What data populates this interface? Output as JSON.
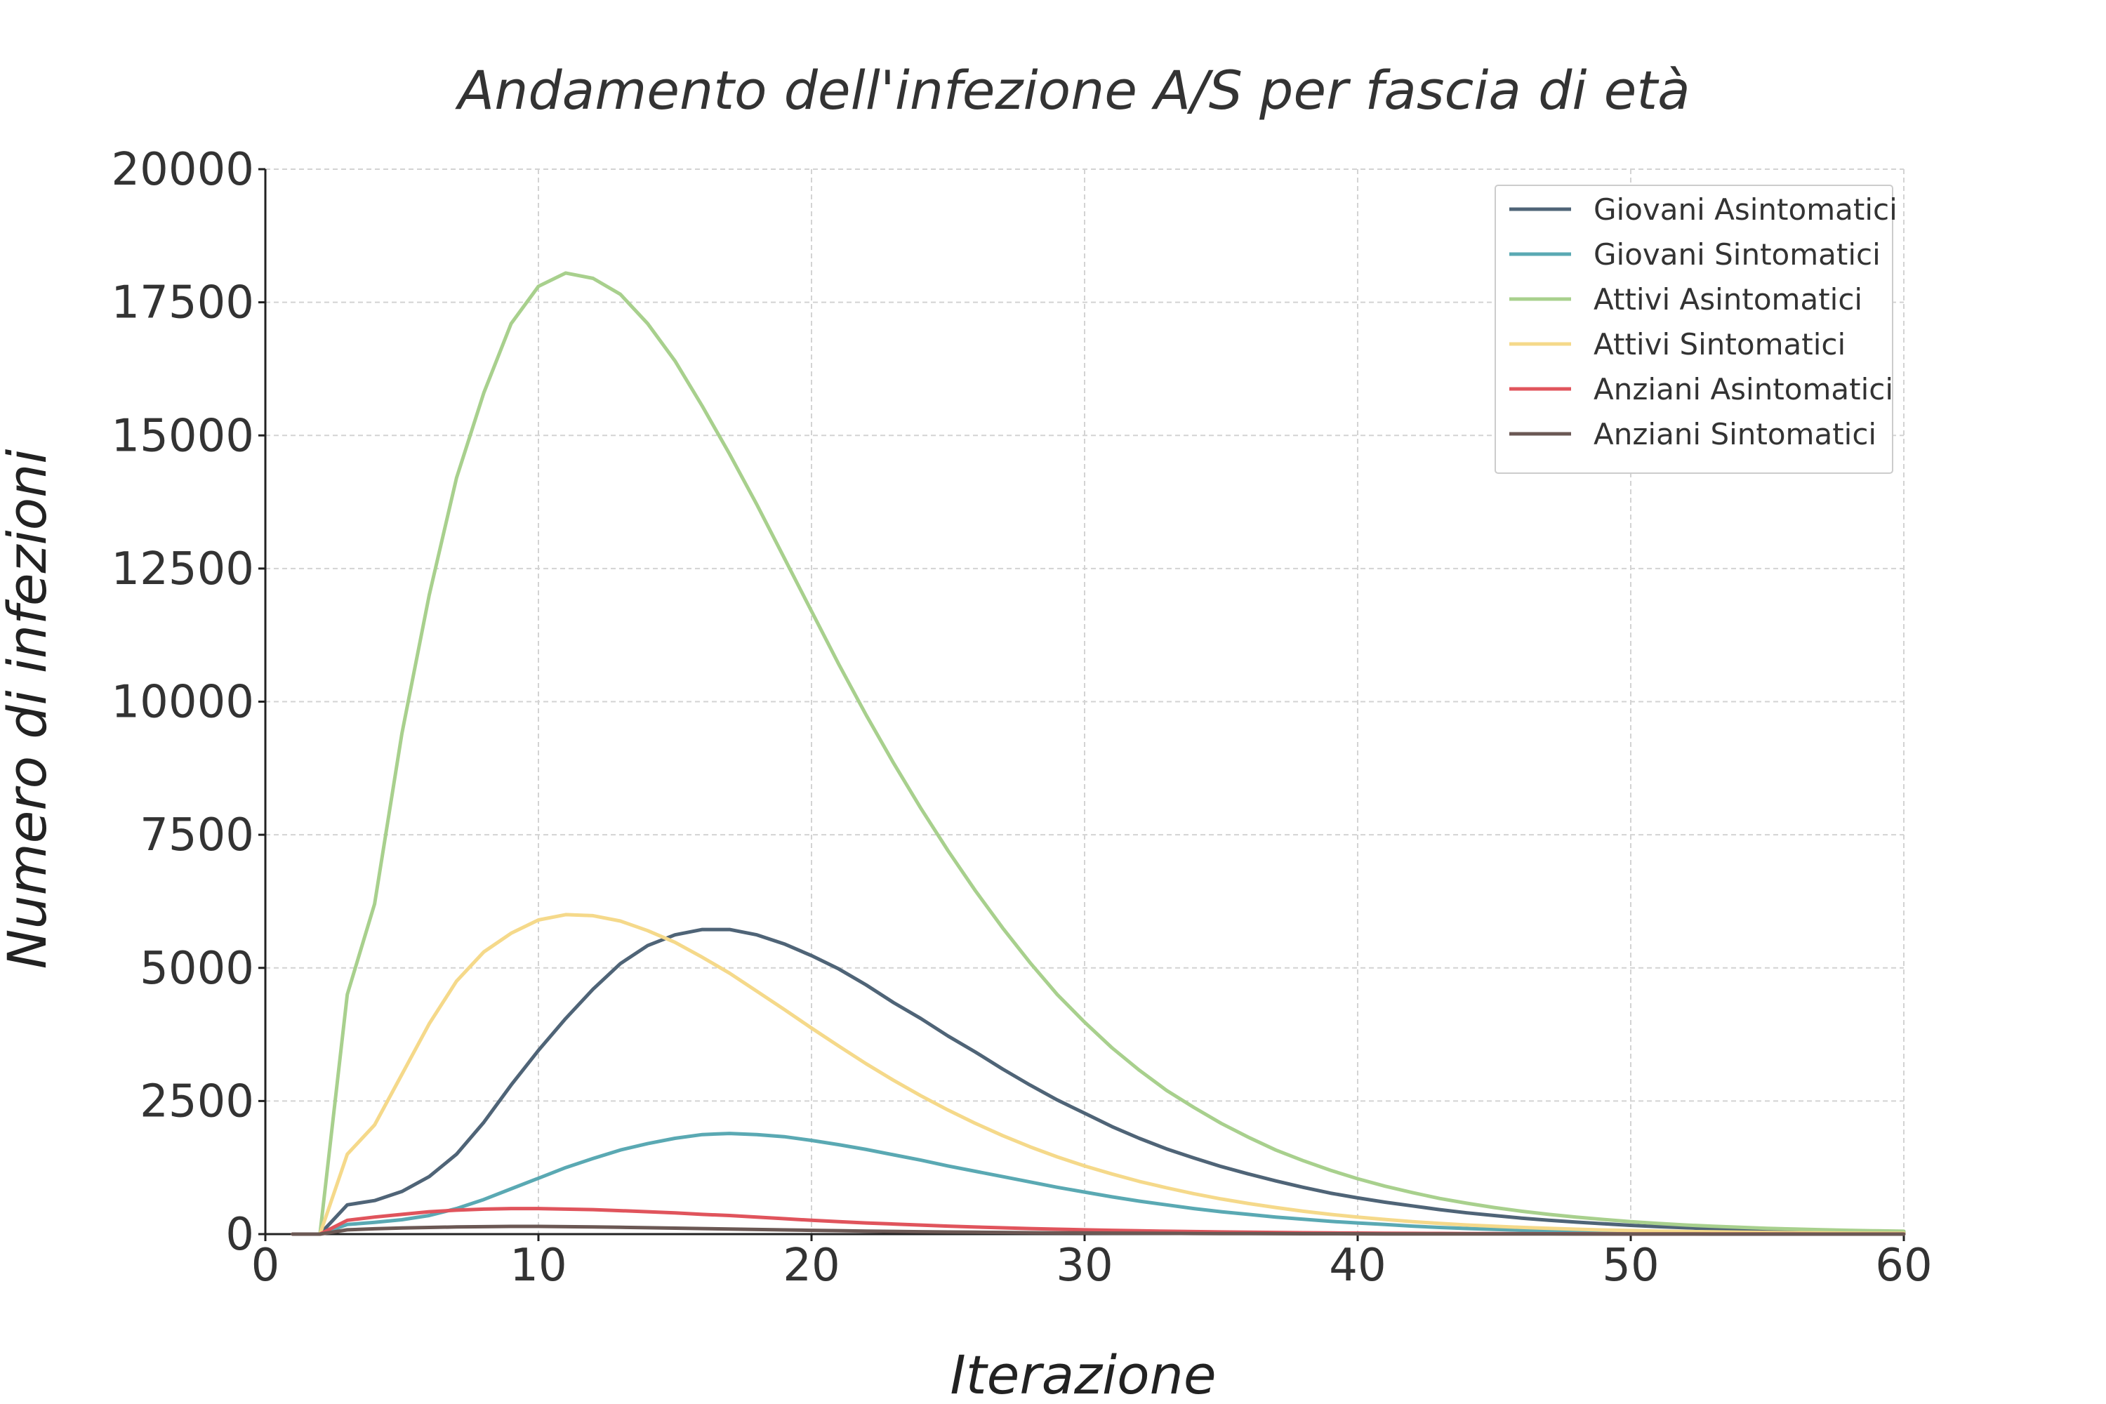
{
  "chart_data": {
    "type": "line",
    "title": "Andamento dell'infezione A/S per fascia di età",
    "xlabel": "Iterazione",
    "ylabel": "Numero di infezioni",
    "xlim": [
      0,
      60
    ],
    "ylim": [
      0,
      20000
    ],
    "xticks": [
      0,
      10,
      20,
      30,
      40,
      50,
      60
    ],
    "yticks": [
      0,
      2500,
      5000,
      7500,
      10000,
      12500,
      15000,
      17500,
      20000
    ],
    "grid": true,
    "legend_position": "top-right",
    "x": [
      1,
      2,
      3,
      4,
      5,
      6,
      7,
      8,
      9,
      10,
      11,
      12,
      13,
      14,
      15,
      16,
      17,
      18,
      19,
      20,
      21,
      22,
      23,
      24,
      25,
      26,
      27,
      28,
      29,
      30,
      31,
      32,
      33,
      34,
      35,
      36,
      37,
      38,
      39,
      40,
      41,
      42,
      43,
      44,
      45,
      46,
      47,
      48,
      49,
      50,
      51,
      52,
      53,
      54,
      55,
      56,
      57,
      58,
      59,
      60
    ],
    "series": [
      {
        "name": "Giovani Asintomatici",
        "color": "#4f6477",
        "values": [
          0,
          0,
          550,
          630,
          800,
          1080,
          1500,
          2100,
          2800,
          3450,
          4050,
          4600,
          5080,
          5420,
          5620,
          5720,
          5720,
          5620,
          5450,
          5230,
          4980,
          4680,
          4350,
          4050,
          3720,
          3420,
          3100,
          2800,
          2520,
          2270,
          2020,
          1800,
          1600,
          1430,
          1270,
          1130,
          1000,
          880,
          770,
          680,
          600,
          530,
          460,
          400,
          350,
          300,
          260,
          225,
          195,
          165,
          140,
          120,
          100,
          85,
          72,
          60,
          50,
          42,
          35,
          30
        ]
      },
      {
        "name": "Giovani Sintomatici",
        "color": "#5aa9b3",
        "values": [
          0,
          0,
          180,
          220,
          270,
          350,
          480,
          650,
          850,
          1050,
          1250,
          1420,
          1580,
          1700,
          1800,
          1870,
          1890,
          1870,
          1830,
          1760,
          1680,
          1590,
          1490,
          1390,
          1280,
          1180,
          1080,
          980,
          880,
          790,
          700,
          620,
          550,
          480,
          420,
          370,
          320,
          280,
          240,
          210,
          180,
          150,
          125,
          105,
          88,
          72,
          60,
          50,
          42,
          35,
          28,
          23,
          19,
          16,
          13,
          11,
          9,
          7,
          6,
          5
        ]
      },
      {
        "name": "Attivi Asintomatici",
        "color": "#a8d08d",
        "values": [
          0,
          0,
          4500,
          6200,
          9400,
          12000,
          14200,
          15800,
          17100,
          17800,
          18050,
          17950,
          17650,
          17100,
          16400,
          15550,
          14650,
          13700,
          12700,
          11700,
          10700,
          9750,
          8850,
          8000,
          7200,
          6450,
          5750,
          5100,
          4500,
          3980,
          3500,
          3080,
          2700,
          2380,
          2080,
          1820,
          1580,
          1380,
          1200,
          1040,
          900,
          780,
          670,
          580,
          500,
          430,
          370,
          320,
          275,
          235,
          200,
          172,
          148,
          128,
          110,
          95,
          82,
          71,
          62,
          54
        ]
      },
      {
        "name": "Attivi Sintomatici",
        "color": "#f5d98a",
        "values": [
          0,
          0,
          1500,
          2050,
          3000,
          3950,
          4750,
          5300,
          5650,
          5900,
          6000,
          5980,
          5880,
          5700,
          5480,
          5200,
          4900,
          4560,
          4220,
          3870,
          3530,
          3200,
          2890,
          2600,
          2330,
          2080,
          1850,
          1640,
          1450,
          1280,
          1130,
          990,
          870,
          760,
          660,
          575,
          500,
          430,
          370,
          320,
          275,
          235,
          200,
          172,
          148,
          126,
          108,
          92,
          78,
          67,
          57,
          49,
          42,
          36,
          31,
          26,
          22,
          19,
          16,
          14
        ]
      },
      {
        "name": "Anziani Asintomatici",
        "color": "#e0545c",
        "values": [
          0,
          0,
          260,
          320,
          370,
          420,
          450,
          470,
          480,
          480,
          470,
          460,
          440,
          420,
          400,
          370,
          350,
          320,
          290,
          260,
          235,
          210,
          190,
          170,
          150,
          133,
          118,
          104,
          92,
          81,
          71,
          62,
          54,
          47,
          41,
          36,
          31,
          27,
          23,
          20,
          17,
          15,
          13,
          11,
          9,
          8,
          7,
          6,
          5,
          4,
          4,
          3,
          3,
          2,
          2,
          2,
          1,
          1,
          1,
          1
        ]
      },
      {
        "name": "Anziani Sintomatici",
        "color": "#6b5854",
        "values": [
          0,
          0,
          80,
          100,
          115,
          125,
          135,
          140,
          145,
          145,
          140,
          135,
          128,
          120,
          112,
          104,
          95,
          87,
          79,
          71,
          64,
          57,
          51,
          45,
          40,
          35,
          31,
          27,
          24,
          21,
          18,
          16,
          14,
          12,
          10,
          9,
          8,
          7,
          6,
          5,
          4,
          4,
          3,
          3,
          2,
          2,
          2,
          1,
          1,
          1,
          1,
          1,
          0,
          0,
          0,
          0,
          0,
          0,
          0,
          0
        ]
      }
    ]
  }
}
